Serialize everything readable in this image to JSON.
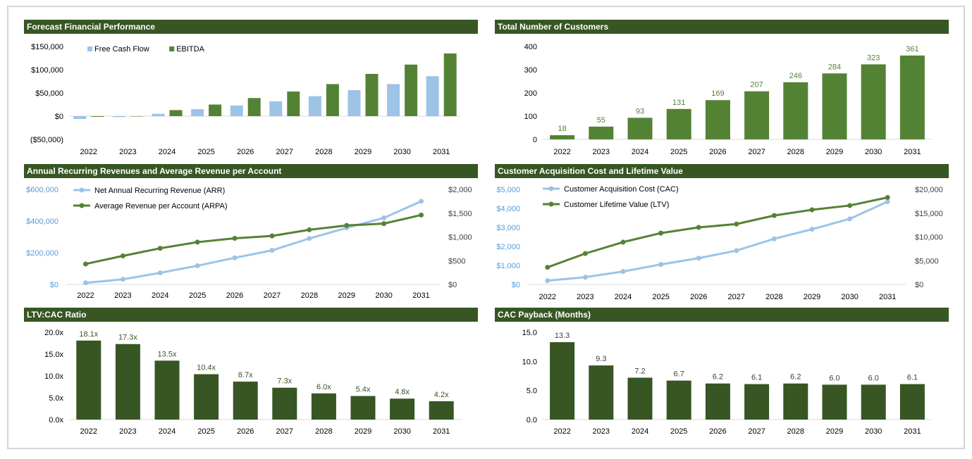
{
  "chart_data": [
    {
      "id": "financial",
      "type": "bar",
      "title": "Forecast Financial Performance",
      "categories": [
        "2022",
        "2023",
        "2024",
        "2025",
        "2026",
        "2027",
        "2028",
        "2029",
        "2030",
        "2031"
      ],
      "series": [
        {
          "name": "Free Cash Flow",
          "color": "#9dc3e6",
          "values": [
            -6000,
            -2000,
            5000,
            15000,
            23000,
            32000,
            43000,
            56000,
            69000,
            86000
          ]
        },
        {
          "name": "EBITDA",
          "color": "#548235",
          "values": [
            -1500,
            0,
            13000,
            25000,
            39000,
            53000,
            69000,
            91000,
            111000,
            135000
          ]
        }
      ],
      "ylim": [
        -50000,
        150000
      ],
      "yticks": [
        150000,
        100000,
        50000,
        0,
        -50000
      ],
      "ytick_labels": [
        "$150,000",
        "$100,000",
        "$50,000",
        "$0",
        "($50,000)"
      ],
      "legend_position": "top-left",
      "grid": false
    },
    {
      "id": "customers",
      "type": "bar",
      "title": "Total Number of Customers",
      "categories": [
        "2022",
        "2023",
        "2024",
        "2025",
        "2026",
        "2027",
        "2028",
        "2029",
        "2030",
        "2031"
      ],
      "series": [
        {
          "color": "#548235",
          "values": [
            18,
            55,
            93,
            131,
            169,
            207,
            246,
            284,
            323,
            361
          ],
          "labels": [
            "18",
            "55",
            "93",
            "131",
            "169",
            "207",
            "246",
            "284",
            "323",
            "361"
          ],
          "label_color": "#548235"
        }
      ],
      "ylim": [
        0,
        400
      ],
      "yticks": [
        400,
        300,
        200,
        100,
        0
      ],
      "ytick_labels": [
        "400",
        "300",
        "200",
        "100",
        "0"
      ],
      "grid": false
    },
    {
      "id": "arr",
      "type": "line",
      "title": "Annual Recurring Revenues and Average Revenue per Account",
      "categories": [
        "2022",
        "2023",
        "2024",
        "2025",
        "2026",
        "2027",
        "2028",
        "2029",
        "2030",
        "2031"
      ],
      "series": [
        {
          "name": "Net Annual Recurring Revenue (ARR)",
          "color": "#9dc3e6",
          "axis": "left",
          "values": [
            10000,
            32000,
            73000,
            118000,
            168000,
            215000,
            290000,
            357000,
            420000,
            525000
          ]
        },
        {
          "name": "Average Revenue per Account (ARPA)",
          "color": "#548235",
          "axis": "right",
          "values": [
            430,
            600,
            760,
            890,
            970,
            1020,
            1150,
            1240,
            1280,
            1460
          ]
        }
      ],
      "ylim_left": [
        0,
        600000
      ],
      "yticks_left": [
        600000,
        400000,
        200000,
        0
      ],
      "ytick_labels_left": [
        "$600,000",
        "$400,000",
        "$200,000",
        "$0"
      ],
      "left_axis_color": "#5b9bd5",
      "ylim_right": [
        0,
        2000
      ],
      "yticks_right": [
        2000,
        1500,
        1000,
        500,
        0
      ],
      "ytick_labels_right": [
        "$2,000",
        "$1,500",
        "$1,000",
        "$500",
        "$0"
      ],
      "right_axis_color": "#404040",
      "legend_position": "top-left",
      "grid": false
    },
    {
      "id": "cac",
      "type": "line",
      "title": "Customer Acquisition Cost and Lifetime Value",
      "categories": [
        "2022",
        "2023",
        "2024",
        "2025",
        "2026",
        "2027",
        "2028",
        "2029",
        "2030",
        "2031"
      ],
      "series": [
        {
          "name": "Customer Acquisition Cost (CAC)",
          "color": "#9dc3e6",
          "axis": "left",
          "values": [
            200,
            380,
            680,
            1050,
            1380,
            1780,
            2400,
            2900,
            3450,
            4350
          ]
        },
        {
          "name": "Customer Lifetime Value (LTV)",
          "color": "#548235",
          "axis": "right",
          "values": [
            3600,
            6500,
            8900,
            10800,
            12000,
            12700,
            14500,
            15700,
            16600,
            18300
          ]
        }
      ],
      "ylim_left": [
        0,
        5000
      ],
      "yticks_left": [
        5000,
        4000,
        3000,
        2000,
        1000,
        0
      ],
      "ytick_labels_left": [
        "$5,000",
        "$4,000",
        "$3,000",
        "$2,000",
        "$1,000",
        "$0"
      ],
      "left_axis_color": "#5b9bd5",
      "ylim_right": [
        0,
        20000
      ],
      "yticks_right": [
        20000,
        15000,
        10000,
        5000,
        0
      ],
      "ytick_labels_right": [
        "$20,000",
        "$15,000",
        "$10,000",
        "$5,000",
        "$0"
      ],
      "right_axis_color": "#404040",
      "legend_position": "top-left",
      "grid": false
    },
    {
      "id": "ltvcac",
      "type": "bar",
      "title": "LTV:CAC Ratio",
      "categories": [
        "2022",
        "2023",
        "2024",
        "2025",
        "2026",
        "2027",
        "2028",
        "2029",
        "2030",
        "2031"
      ],
      "series": [
        {
          "color": "#375623",
          "values": [
            18.1,
            17.3,
            13.5,
            10.4,
            8.7,
            7.3,
            6.0,
            5.4,
            4.8,
            4.2
          ],
          "labels": [
            "18.1x",
            "17.3x",
            "13.5x",
            "10.4x",
            "8.7x",
            "7.3x",
            "6.0x",
            "5.4x",
            "4.8x",
            "4.2x"
          ],
          "label_color": "#375623"
        }
      ],
      "ylim": [
        0,
        20
      ],
      "yticks": [
        20,
        15,
        10,
        5,
        0
      ],
      "ytick_labels": [
        "20.0x",
        "15.0x",
        "10.0x",
        "5.0x",
        "0.0x"
      ],
      "grid": false
    },
    {
      "id": "payback",
      "type": "bar",
      "title": "CAC Payback (Months)",
      "categories": [
        "2022",
        "2023",
        "2024",
        "2025",
        "2026",
        "2027",
        "2028",
        "2029",
        "2030",
        "2031"
      ],
      "series": [
        {
          "color": "#375623",
          "values": [
            13.3,
            9.3,
            7.2,
            6.7,
            6.2,
            6.1,
            6.2,
            6.0,
            6.0,
            6.1
          ],
          "labels": [
            "13.3",
            "9.3",
            "7.2",
            "6.7",
            "6.2",
            "6.1",
            "6.2",
            "6.0",
            "6.0",
            "6.1"
          ],
          "label_color": "#404040"
        }
      ],
      "ylim": [
        0,
        15
      ],
      "yticks": [
        15,
        10,
        5,
        0
      ],
      "ytick_labels": [
        "15.0",
        "10.0",
        "5.0",
        "0.0"
      ],
      "grid": false
    }
  ]
}
